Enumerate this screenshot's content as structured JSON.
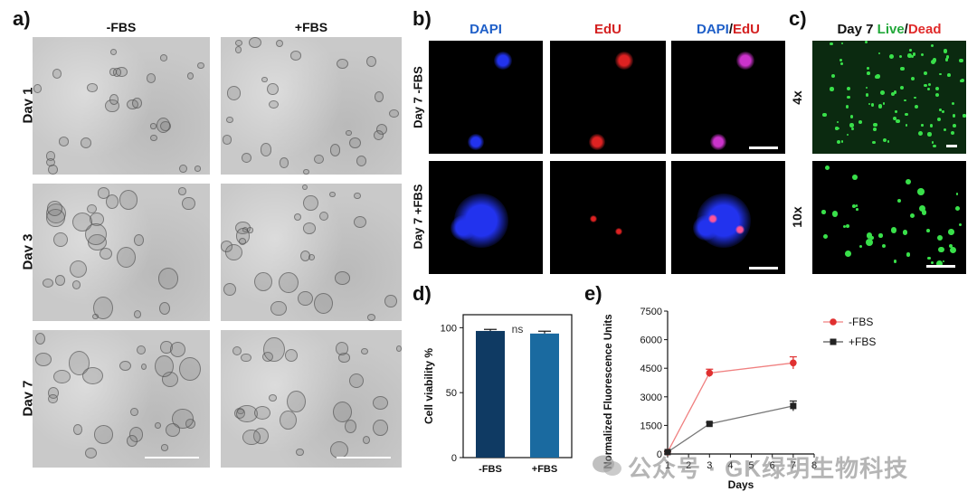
{
  "panels": {
    "a": {
      "label": "a)",
      "columns": [
        "-FBS",
        "+FBS"
      ],
      "rows": [
        "Day 1",
        "Day 3",
        "Day 7"
      ]
    },
    "b": {
      "label": "b)",
      "columns": [
        {
          "parts": [
            {
              "text": "DAPI",
              "color": "#1f5fc8"
            }
          ]
        },
        {
          "parts": [
            {
              "text": "EdU",
              "color": "#d42020"
            }
          ]
        },
        {
          "parts": [
            {
              "text": "DAPI",
              "color": "#1f5fc8"
            },
            {
              "text": "/",
              "color": "#111111"
            },
            {
              "text": "EdU",
              "color": "#d42020"
            }
          ]
        }
      ],
      "rows": [
        "Day 7 -FBS",
        "Day 7 +FBS"
      ]
    },
    "c": {
      "label": "c)",
      "title_parts": [
        {
          "text": "Day 7 ",
          "color": "#111111"
        },
        {
          "text": "Live",
          "color": "#22a83a"
        },
        {
          "text": "/",
          "color": "#111111"
        },
        {
          "text": "Dead",
          "color": "#e02a2a"
        }
      ],
      "rows": [
        "4x",
        "10x"
      ]
    },
    "d": {
      "label": "d)"
    },
    "e": {
      "label": "e)"
    }
  },
  "chart_data": [
    {
      "type": "bar",
      "categories": [
        "-FBS",
        "+FBS"
      ],
      "values": [
        97.5,
        95.5
      ],
      "errors": [
        1.2,
        1.8
      ],
      "colors": [
        "#0f3a63",
        "#1a6aa0"
      ],
      "ylabel": "Cell viability %",
      "ylim": [
        0,
        110
      ],
      "yticks": [
        0,
        50,
        100
      ],
      "annotation": "ns"
    },
    {
      "type": "line",
      "xlabel": "Days",
      "ylabel": "Normalized Fluorescence Units",
      "xlim": [
        1,
        8
      ],
      "ylim": [
        0,
        7500
      ],
      "xticks": [
        1,
        2,
        3,
        4,
        5,
        6,
        7,
        8
      ],
      "yticks": [
        0,
        1500,
        3000,
        4500,
        6000,
        7500
      ],
      "legend_position": "top-right",
      "series": [
        {
          "name": "-FBS",
          "color": "#e03030",
          "marker": "circle",
          "x": [
            1,
            3,
            7
          ],
          "y": [
            100,
            4250,
            4780
          ],
          "err": [
            50,
            200,
            320
          ]
        },
        {
          "name": "+FBS",
          "color": "#222222",
          "marker": "square",
          "x": [
            1,
            3,
            7
          ],
          "y": [
            100,
            1580,
            2520
          ],
          "err": [
            40,
            80,
            260
          ]
        }
      ]
    }
  ],
  "watermark": "公众号 · GK绿玥生物科技"
}
